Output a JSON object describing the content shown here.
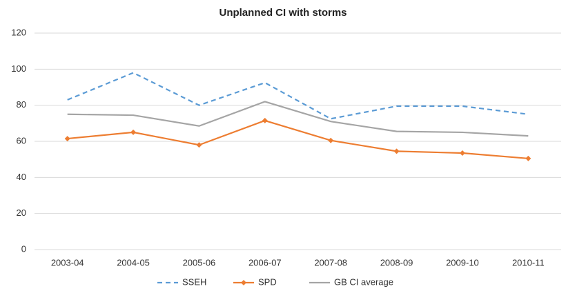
{
  "chart_data": {
    "type": "line",
    "title": "Unplanned CI with storms",
    "categories": [
      "2003-04",
      "2004-05",
      "2005-06",
      "2006-07",
      "2007-08",
      "2008-09",
      "2009-10",
      "2010-11"
    ],
    "series": [
      {
        "name": "SSEH",
        "color": "#5b9bd5",
        "dash": true,
        "marker": false,
        "values": [
          83,
          98,
          80,
          92.5,
          72.5,
          79.5,
          79.5,
          75
        ]
      },
      {
        "name": "SPD",
        "color": "#ed7d31",
        "dash": false,
        "marker": true,
        "values": [
          61.5,
          65,
          58,
          71.5,
          60.5,
          54.5,
          53.5,
          50.5
        ]
      },
      {
        "name": "GB CI average",
        "color": "#a5a5a5",
        "dash": false,
        "marker": false,
        "values": [
          75,
          74.5,
          68.5,
          82,
          71,
          65.5,
          65,
          63
        ]
      }
    ],
    "ylim": [
      0,
      120
    ],
    "yticks": [
      0,
      20,
      40,
      60,
      80,
      100,
      120
    ],
    "grid": true,
    "legend": "bottom"
  }
}
